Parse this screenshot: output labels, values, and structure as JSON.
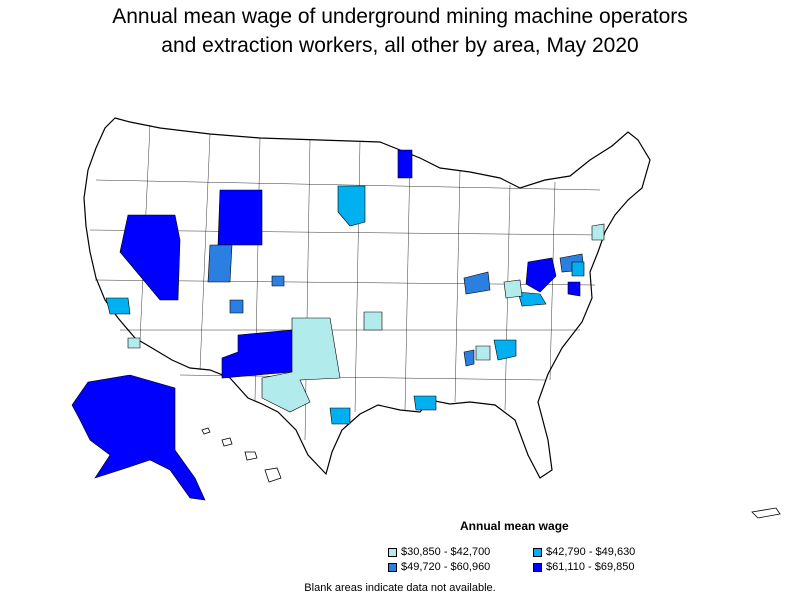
{
  "title": {
    "line1": "Annual mean wage of underground mining machine operators",
    "line2": "and extraction workers, all other by area, May 2020"
  },
  "legend": {
    "title": "Annual mean wage",
    "items": [
      {
        "label": "$30,850 - $42,700",
        "color": "#b2ebeb"
      },
      {
        "label": "$42,790 - $49,630",
        "color": "#00b0f0"
      },
      {
        "label": "$49,720 - $60,960",
        "color": "#2a7fe0"
      },
      {
        "label": "$61,110 - $69,850",
        "color": "#0000ff"
      }
    ]
  },
  "footnote": "Blank areas indicate data not available.",
  "colors": {
    "border": "#000000",
    "blank": "#ffffff"
  }
}
